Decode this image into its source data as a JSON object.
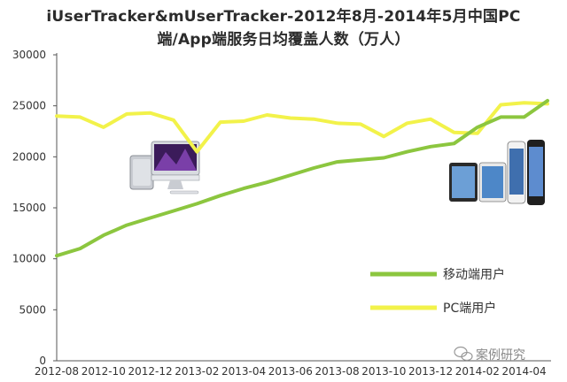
{
  "chart_data": {
    "type": "line",
    "title_line1": "iUserTracker&mUserTracker-2012年8月-2014年5月中国PC",
    "title_line2": "端/App端服务日均覆盖人数（万人）",
    "ylim": [
      0,
      30000
    ],
    "yticks": [
      0,
      5000,
      10000,
      15000,
      20000,
      25000,
      30000
    ],
    "x": [
      "2012-08",
      "2012-09",
      "2012-10",
      "2012-11",
      "2012-12",
      "2013-01",
      "2013-02",
      "2013-03",
      "2013-04",
      "2013-05",
      "2013-06",
      "2013-07",
      "2013-08",
      "2013-09",
      "2013-10",
      "2013-11",
      "2013-12",
      "2014-01",
      "2014-02",
      "2014-03",
      "2014-04",
      "2014-05"
    ],
    "xtick_labels": [
      "2012-08",
      "2012-10",
      "2012-12",
      "2013-02",
      "2013-04",
      "2013-06",
      "2013-08",
      "2013-10",
      "2013-12",
      "2014-02",
      "2014-04"
    ],
    "series": [
      {
        "name": "移动端用户",
        "color": "#8cc63f",
        "values": [
          10300,
          11000,
          12300,
          13300,
          14000,
          14700,
          15400,
          16200,
          16900,
          17500,
          18200,
          18900,
          19500,
          19700,
          19900,
          20500,
          21000,
          21300,
          22900,
          23900,
          23900,
          25500
        ]
      },
      {
        "name": "PC端用户",
        "color": "#f2f24a",
        "values": [
          24000,
          23900,
          22900,
          24200,
          24300,
          23600,
          20500,
          23400,
          23500,
          24100,
          23800,
          23700,
          23300,
          23200,
          22000,
          23300,
          23700,
          22400,
          22300,
          25100,
          25300,
          25200
        ]
      }
    ],
    "legend_position": "right-middle",
    "grid": false
  },
  "watermark": {
    "text": "案例研究",
    "icon": "wechat-logo-icon"
  },
  "images": {
    "imac": "imac-computer-icon",
    "devices": "tablet-phone-devices-icon"
  }
}
